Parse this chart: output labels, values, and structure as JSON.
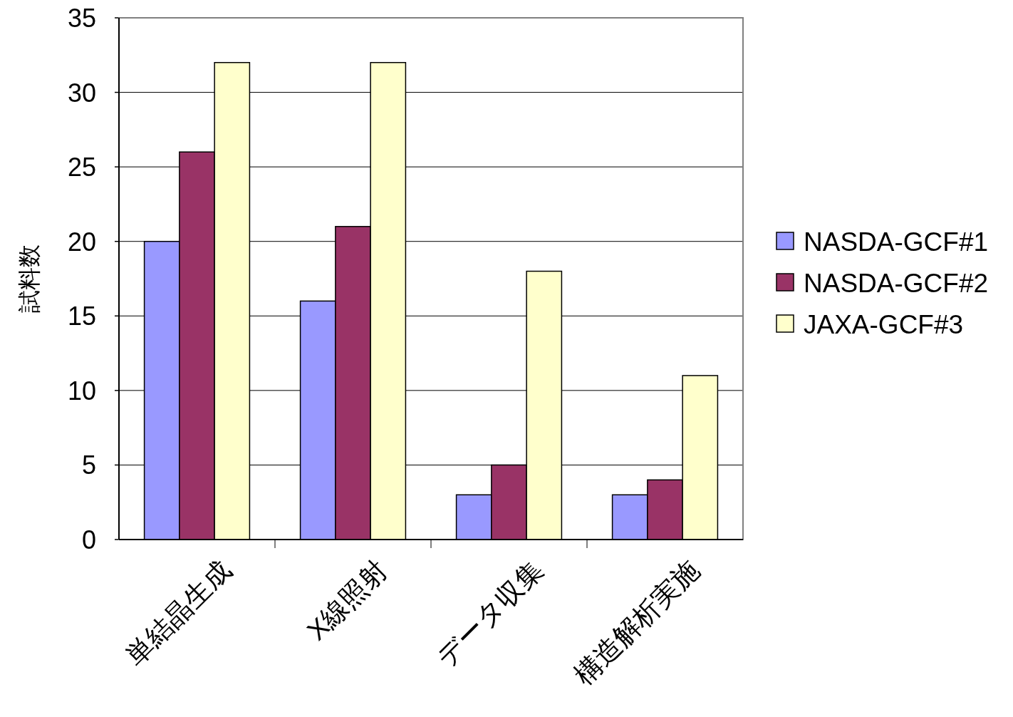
{
  "chart_data": {
    "type": "bar",
    "ylabel": "試料数",
    "categories": [
      "単結晶生成",
      "X線照射",
      "データ収集",
      "構造解析実施"
    ],
    "series": [
      {
        "name": "NASDA-GCF#1",
        "color": "#9999ff",
        "values": [
          20,
          16,
          3,
          3
        ]
      },
      {
        "name": "NASDA-GCF#2",
        "color": "#993366",
        "values": [
          26,
          21,
          5,
          4
        ]
      },
      {
        "name": "JAXA-GCF#3",
        "color": "#ffffcc",
        "values": [
          32,
          32,
          18,
          11
        ]
      }
    ],
    "ylim": [
      0,
      35
    ],
    "yticks": [
      0,
      5,
      10,
      15,
      20,
      25,
      30,
      35
    ],
    "grid": "y",
    "legend": "right"
  }
}
